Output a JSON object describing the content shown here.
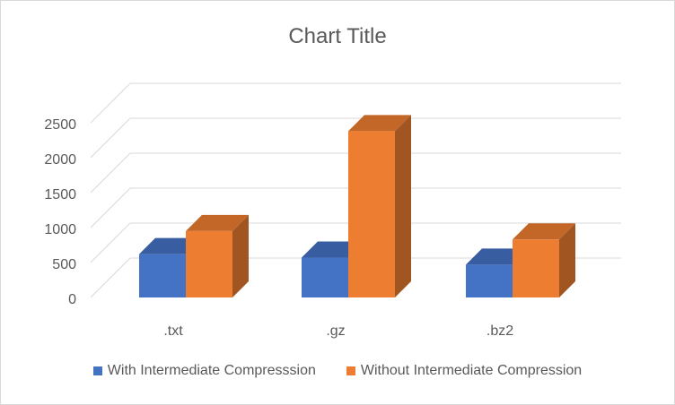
{
  "chart_data": {
    "type": "bar",
    "title": "Chart Title",
    "categories": [
      ".txt",
      ".gz",
      ".bz2"
    ],
    "series": [
      {
        "name": "With Intermediate Compresssion",
        "values": [
          620,
          570,
          470
        ],
        "color": "#4472c4"
      },
      {
        "name": "Without Intermediate Compression",
        "values": [
          950,
          2380,
          830
        ],
        "color": "#ed7d31"
      }
    ],
    "ylim": [
      0,
      2500
    ],
    "yticks": [
      0,
      500,
      1000,
      1500,
      2000,
      2500
    ],
    "grid": true,
    "legend": "bottom",
    "style": "3d-column"
  }
}
